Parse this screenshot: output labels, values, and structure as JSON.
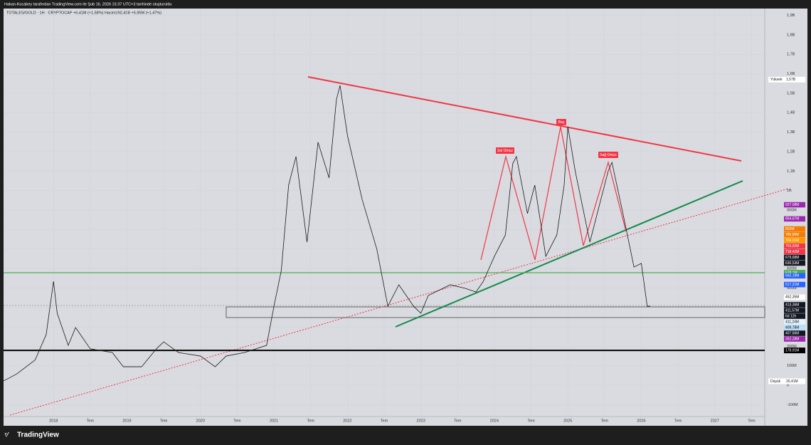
{
  "header": {
    "credit": "Hakan-Kocabey tarafından TradingView.com ile Şub 16, 2026 15:37 UTC+3 tarihinde oluşturuldu",
    "symbol": "TOTALES/GOLD · 1H · CRYPTOCAP  +6,41M (+1,58%)  Hacim192,41B  +5,95M (+1,47%)"
  },
  "footer": {
    "brand": "TradingView"
  },
  "chart_data": {
    "type": "line",
    "color": "#1a1a1a",
    "x": [
      2017.32,
      2017.5,
      2017.75,
      2017.9,
      2018.0,
      2018.05,
      2018.2,
      2018.3,
      2018.5,
      2018.8,
      2018.95,
      2019.2,
      2019.4,
      2019.5,
      2019.7,
      2020.0,
      2020.2,
      2020.35,
      2020.6,
      2020.9,
      2021.0,
      2021.1,
      2021.2,
      2021.3,
      2021.45,
      2021.6,
      2021.75,
      2021.85,
      2021.9,
      2022.0,
      2022.2,
      2022.4,
      2022.55,
      2022.7,
      2022.8,
      2022.9,
      2023.0,
      2023.1,
      2023.4,
      2023.6,
      2023.75,
      2023.85,
      2024.0,
      2024.15,
      2024.25,
      2024.3,
      2024.45,
      2024.55,
      2024.7,
      2024.85,
      2024.95,
      2025.0,
      2025.1,
      2025.3,
      2025.4,
      2025.55,
      2025.6,
      2025.75,
      2025.9,
      2026.0,
      2026.08,
      2026.12
    ],
    "values": [
      22,
      58,
      130,
      260,
      534,
      370,
      205,
      296,
      187,
      168,
      95,
      95,
      187,
      223,
      168,
      150,
      95,
      150,
      168,
      205,
      406,
      589,
      1028,
      1175,
      735,
      1248,
      1065,
      1467,
      1540,
      1284,
      955,
      699,
      406,
      516,
      461,
      406,
      370,
      461,
      516,
      498,
      479,
      534,
      662,
      772,
      1138,
      1175,
      882,
      1028,
      662,
      772,
      1028,
      1328,
      1101,
      735,
      882,
      1101,
      1145,
      882,
      607,
      626,
      406,
      406
    ],
    "xlim": [
      2017.32,
      2027.68
    ],
    "xticks": [
      {
        "value": 2018,
        "label": "2018"
      },
      {
        "value": 2018.5,
        "label": "Tem"
      },
      {
        "value": 2019,
        "label": "2019"
      },
      {
        "value": 2019.5,
        "label": "Tem"
      },
      {
        "value": 2020,
        "label": "2020"
      },
      {
        "value": 2020.5,
        "label": "Tem"
      },
      {
        "value": 2021,
        "label": "2021"
      },
      {
        "value": 2021.5,
        "label": "Tem"
      },
      {
        "value": 2022,
        "label": "2022"
      },
      {
        "value": 2022.5,
        "label": "Tem"
      },
      {
        "value": 2023,
        "label": "2023"
      },
      {
        "value": 2023.5,
        "label": "Tem"
      },
      {
        "value": 2024,
        "label": "2024"
      },
      {
        "value": 2024.5,
        "label": "Tem"
      },
      {
        "value": 2025,
        "label": "2025"
      },
      {
        "value": 2025.5,
        "label": "Tem"
      },
      {
        "value": 2026,
        "label": "2026"
      },
      {
        "value": 2026.5,
        "label": "Tem"
      },
      {
        "value": 2027,
        "label": "2027"
      },
      {
        "value": 2027.5,
        "label": "Tem"
      }
    ],
    "ylim": [
      -179,
      1935
    ],
    "yticks": [
      {
        "value": 1900,
        "label": "1,9B"
      },
      {
        "value": 1800,
        "label": "1,8B"
      },
      {
        "value": 1700,
        "label": "1,7B"
      },
      {
        "value": 1600,
        "label": "1,6B"
      },
      {
        "value": 1500,
        "label": "1,5B"
      },
      {
        "value": 1400,
        "label": "1,4B"
      },
      {
        "value": 1300,
        "label": "1,3B"
      },
      {
        "value": 1200,
        "label": "1,2B"
      },
      {
        "value": 1100,
        "label": "1,1B"
      },
      {
        "value": 1000,
        "label": "1B"
      },
      {
        "value": 900,
        "label": "900M"
      },
      {
        "value": 800,
        "label": "800M"
      },
      {
        "value": 700,
        "label": "700M"
      },
      {
        "value": 600,
        "label": "600M"
      },
      {
        "value": 500,
        "label": "500M"
      },
      {
        "value": 400,
        "label": "400M"
      },
      {
        "value": 300,
        "label": "300M"
      },
      {
        "value": 200,
        "label": "200M"
      },
      {
        "value": 100,
        "label": "100M"
      },
      0,
      {
        "value": -100,
        "label": "-100M"
      }
    ],
    "grid": true,
    "levels": [
      {
        "value": 578.1,
        "label": "578,1M",
        "color": "#4caf50"
      },
      {
        "value": 178.91,
        "label": "178,91M",
        "color": "#000000"
      }
    ],
    "price_labels": [
      {
        "value": 927.08,
        "label": "927,08M",
        "color": "#9c27b0"
      },
      {
        "value": 854.67,
        "label": "854,67M",
        "color": "#9c27b0"
      },
      {
        "value": 803,
        "label": "803M",
        "color": "#f57c00"
      },
      {
        "value": 789.89,
        "label": "789,89M",
        "color": "#f57c00"
      },
      {
        "value": 764.01,
        "label": "764,01M",
        "color": "#ff9800"
      },
      {
        "value": 753.92,
        "label": "753,92M",
        "color": "#f23645"
      },
      {
        "value": 718.42,
        "label": "718,42M",
        "color": "#f23645"
      },
      {
        "value": 679.68,
        "label": "679,68M",
        "color": "#131722"
      },
      {
        "value": 630.53,
        "label": "630,53M",
        "color": "#131722"
      },
      {
        "value": 562.19,
        "label": "562,19M",
        "color": "#2962ff"
      },
      {
        "value": 517.21,
        "label": "517,21M",
        "color": "#2962ff"
      },
      {
        "value": 452.35,
        "label": "452,35M",
        "color": "#ffffff"
      },
      {
        "value": 413.36,
        "label": "413,36M",
        "color": "#131722"
      },
      {
        "value": 411.57,
        "label": "411,57M",
        "color": "#131722",
        "countdown": "6d 12h"
      },
      {
        "value": 411.24,
        "label": "411,24M",
        "color": "#e3f2fd"
      },
      {
        "value": 409.78,
        "label": "409,78M",
        "color": "#bbdefb"
      },
      {
        "value": 407.66,
        "label": "407,66M",
        "color": "#131722"
      },
      {
        "value": 352.28,
        "label": "352,28M",
        "color": "#9c27b0"
      }
    ],
    "high": {
      "name": "Yüksek",
      "value": 1570,
      "label": "1,57B"
    },
    "low": {
      "name": "Düşük",
      "value": 20.41,
      "label": "20,41M"
    },
    "annotations": [
      {
        "text": "Sol Omuz"
      },
      {
        "text": "Baş"
      },
      {
        "text": "Sağ Omuz"
      }
    ]
  }
}
